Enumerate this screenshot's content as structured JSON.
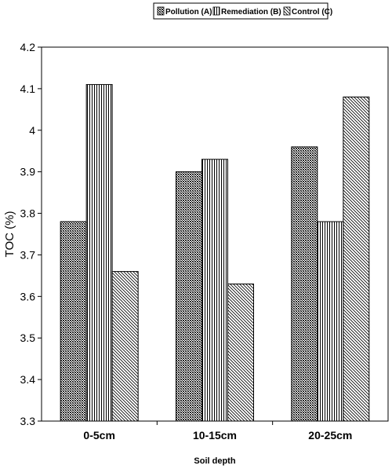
{
  "chart_data": {
    "type": "bar",
    "categories": [
      "0-5cm",
      "10-15cm",
      "20-25cm"
    ],
    "series": [
      {
        "name": "Pollution (A)",
        "values": [
          3.78,
          3.9,
          3.96
        ],
        "pattern": "crosshatch"
      },
      {
        "name": "Remediation (B)",
        "values": [
          4.11,
          3.93,
          3.78
        ],
        "pattern": "vertical"
      },
      {
        "name": "Control (C)",
        "values": [
          3.66,
          3.63,
          4.08
        ],
        "pattern": "diagonal"
      }
    ],
    "xlabel": "Soil depth",
    "ylabel": "TOC (%)",
    "ylim": [
      3.3,
      4.2
    ],
    "yticks": [
      "3.3",
      "3.4",
      "3.5",
      "3.6",
      "3.7",
      "3.8",
      "3.9",
      "4",
      "4.1",
      "4.2"
    ],
    "grid": false,
    "legend_position": "top"
  }
}
